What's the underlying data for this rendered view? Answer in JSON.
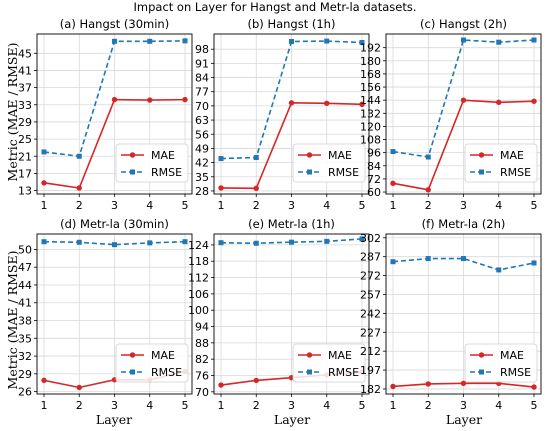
{
  "figure": {
    "title": "Impact on Layer for Hangst and Metr-la datasets.",
    "xlabel": "Layer",
    "ylabel": "Metric (MAE / RMSE)"
  },
  "colors": {
    "MAE": "#d62728",
    "RMSE": "#1f77b4"
  },
  "chart_data": [
    {
      "type": "line",
      "title": "(a) Hangst (30min)",
      "x": [
        1,
        2,
        3,
        4,
        5
      ],
      "ylim": [
        12.2,
        49.5
      ],
      "yticks": [
        13,
        17,
        21,
        25,
        29,
        33,
        37,
        41,
        45
      ],
      "legend": "center-right",
      "series": [
        {
          "name": "MAE",
          "values": [
            14.8,
            13.6,
            34.2,
            34.1,
            34.2
          ]
        },
        {
          "name": "RMSE",
          "values": [
            22.0,
            21.0,
            47.8,
            47.8,
            47.9
          ]
        }
      ]
    },
    {
      "type": "line",
      "title": "(b) Hangst (1h)",
      "x": [
        1,
        2,
        3,
        4,
        5
      ],
      "ylim": [
        26.5,
        105.5
      ],
      "yticks": [
        28,
        35,
        42,
        49,
        56,
        63,
        70,
        77,
        84,
        91,
        98
      ],
      "legend": "center-right",
      "series": [
        {
          "name": "MAE",
          "values": [
            29.5,
            29.3,
            71.5,
            71.3,
            70.8
          ]
        },
        {
          "name": "RMSE",
          "values": [
            44.0,
            44.5,
            101.8,
            102.0,
            101.3
          ]
        }
      ]
    },
    {
      "type": "line",
      "title": "(c) Hangst (2h)",
      "x": [
        1,
        2,
        3,
        4,
        5
      ],
      "ylim": [
        58.2,
        204.5
      ],
      "yticks": [
        60,
        72,
        84,
        96,
        108,
        120,
        132,
        144,
        156,
        168,
        180,
        192
      ],
      "legend": "center-right",
      "series": [
        {
          "name": "MAE",
          "values": [
            68.0,
            62.0,
            144.0,
            142.0,
            143.0
          ]
        },
        {
          "name": "RMSE",
          "values": [
            97.0,
            92.0,
            199.0,
            197.0,
            199.0
          ]
        }
      ]
    },
    {
      "type": "line",
      "title": "(d) Metr-la (30min)",
      "x": [
        1,
        2,
        3,
        4,
        5
      ],
      "ylim": [
        25.6,
        52.6
      ],
      "yticks": [
        26,
        29,
        32,
        35,
        38,
        41,
        44,
        47,
        50
      ],
      "legend": "center-right",
      "series": [
        {
          "name": "MAE",
          "values": [
            27.9,
            26.7,
            28.0,
            28.0,
            29.4
          ]
        },
        {
          "name": "RMSE",
          "values": [
            51.3,
            51.2,
            50.8,
            51.1,
            51.3
          ]
        }
      ]
    },
    {
      "type": "line",
      "title": "(e) Metr-la (1h)",
      "x": [
        1,
        2,
        3,
        4,
        5
      ],
      "ylim": [
        69.2,
        128.0
      ],
      "yticks": [
        70,
        76,
        82,
        88,
        94,
        100,
        106,
        112,
        118,
        124
      ],
      "legend": "center-right",
      "series": [
        {
          "name": "MAE",
          "values": [
            72.5,
            74.2,
            75.2,
            76.2,
            77.2
          ]
        },
        {
          "name": "RMSE",
          "values": [
            124.8,
            124.6,
            125.0,
            125.3,
            126.2
          ]
        }
      ]
    },
    {
      "type": "line",
      "title": "(f) Metr-la (2h)",
      "x": [
        1,
        2,
        3,
        4,
        5
      ],
      "ylim": [
        178.0,
        305.0
      ],
      "yticks": [
        182,
        197,
        212,
        227,
        242,
        257,
        272,
        287,
        302
      ],
      "legend": "center-right",
      "series": [
        {
          "name": "MAE",
          "values": [
            184.0,
            186.0,
            186.5,
            186.5,
            183.5
          ]
        },
        {
          "name": "RMSE",
          "values": [
            283.0,
            285.5,
            285.5,
            276.5,
            282.0
          ]
        }
      ]
    }
  ]
}
